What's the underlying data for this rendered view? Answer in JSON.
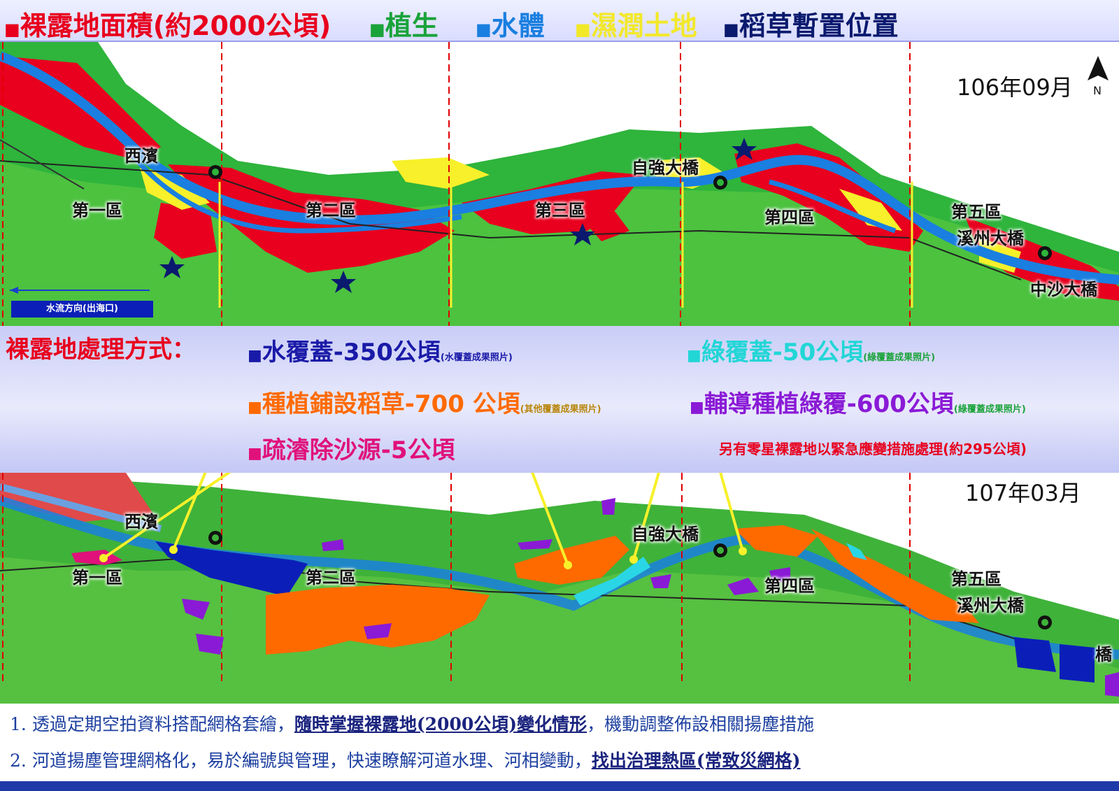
{
  "legend": {
    "bare_land": "裸露地面積(約2000公頃)",
    "vegetation": "植生",
    "water": "水體",
    "wetland": "濕潤土地",
    "straw": "稻草暫置位置",
    "colors": {
      "bare": "#e8001e",
      "veg": "#1aa33a",
      "water": "#1a7fe0",
      "wet": "#f7f02a",
      "straw": "#0a1a6e"
    }
  },
  "map_top": {
    "date": "106年09月",
    "north": "N",
    "labels": {
      "xibin": "西濱",
      "zone1": "第一區",
      "zone2": "第二區",
      "zone3": "第三區",
      "zone4": "第四區",
      "zone5": "第五區",
      "ziqiang": "自強大橋",
      "xizhou": "溪州大橋",
      "zhongsha": "中沙大橋"
    },
    "flow": "水流方向(出海口)"
  },
  "treatment": {
    "heading": "裸露地處理方式：",
    "water_cover": "水覆蓋-350公頃",
    "water_cover_note": "(水覆蓋成果照片)",
    "green_cover": "綠覆蓋-50公頃",
    "green_cover_note": "(綠覆蓋成果照片)",
    "straw_cover": "種植鋪設稻草-700 公頃",
    "straw_cover_note": "(其他覆蓋成果照片)",
    "guided_green": "輔導種植綠覆-600公頃",
    "guided_green_note": "(綠覆蓋成果照片)",
    "dredge": "疏濬除沙源-5公頃",
    "emergency": "另有零星裸露地以緊急應變措施處理(約295公頃)",
    "square": "■"
  },
  "map_bottom": {
    "date": "107年03月",
    "labels": {
      "xibin": "西濱",
      "zone1": "第一區",
      "zone2": "第二區",
      "zone4": "第四區",
      "zone5": "第五區",
      "ziqiang": "自強大橋",
      "xizhou": "溪州大橋",
      "bridge_partial": "橋"
    }
  },
  "notes": {
    "n1_num": "1.",
    "n1_a": "透過定期空拍資料搭配網格套繪，",
    "n1_b": "隨時掌握裸露地(2000公頃)變化情形",
    "n1_c": "，機動調整佈設相關揚塵措施",
    "n2_num": "2.",
    "n2_a": "河道揚塵管理網格化，易於編號與管理，快速瞭解河道水理、河相變動，",
    "n2_b": "找出治理熱區(常致災網格)"
  }
}
